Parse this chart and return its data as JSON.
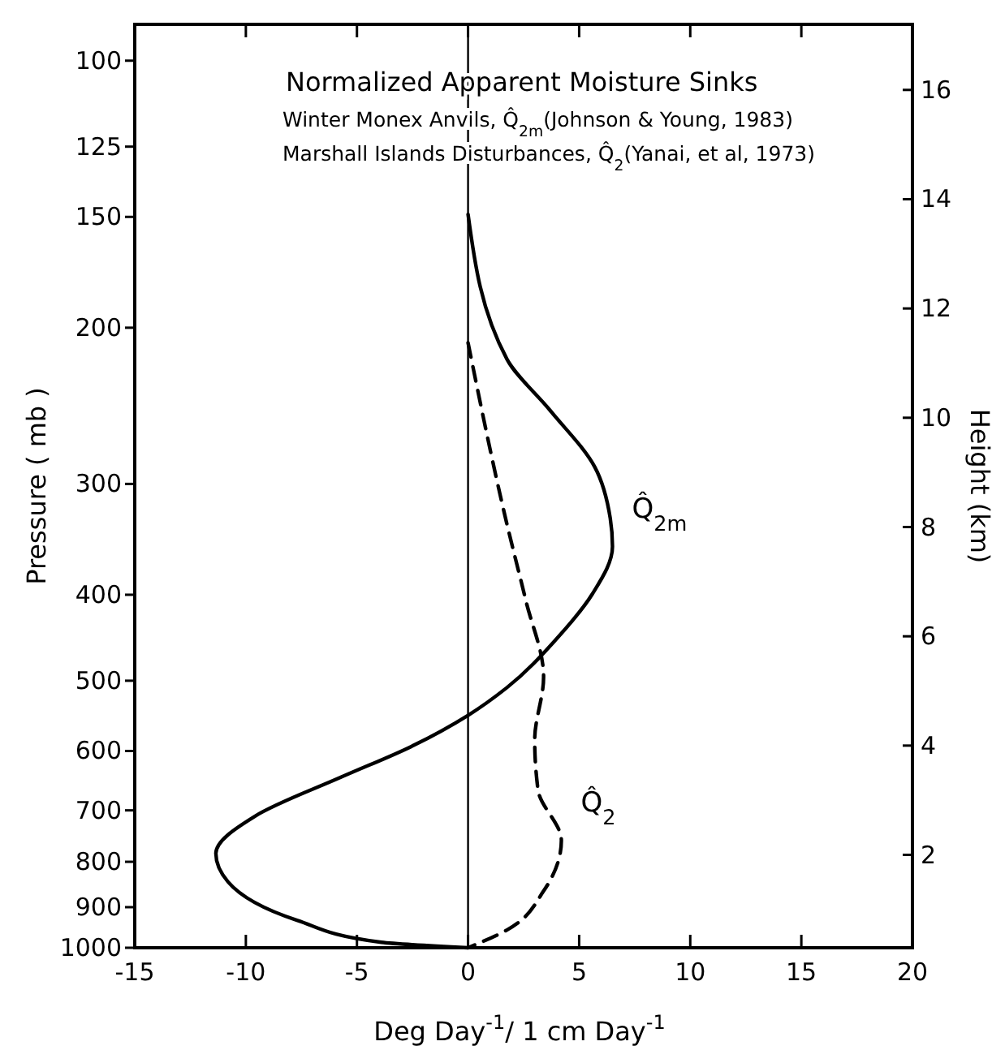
{
  "chart_data": {
    "type": "line",
    "title": "Normalized Apparent Moisture Sinks",
    "annotations": [
      "Winter Monex Anvils, Q̂$_{2m}$(Johnson & Young, 1983)",
      "Marshall Islands Disturbances,  Q̂$_{2}$(Yanai, et al, 1973)"
    ],
    "xlabel": "Deg Day$^{-1}$/ 1 cm Day$^{-1}$",
    "ylabel": "Pressure ( mb )",
    "y2label": "Height (km)",
    "series": [
      {
        "name": "Q̂$_{2m}$",
        "color": "#000000",
        "line_style": "solid",
        "x": [
          0,
          1.75,
          3.7,
          5.7,
          6.4,
          6.5,
          5.6,
          4.0,
          1.75,
          0,
          -2.55,
          -5.7,
          -9.6,
          -11.35,
          -10.8,
          -7.7,
          -3.9,
          0
        ],
        "values": [
          149,
          217,
          248,
          287,
          328,
          353,
          399,
          448,
          509,
          547,
          593,
          642,
          711,
          783,
          843,
          931,
          986,
          1000
        ]
      },
      {
        "name": "Q̂$_{2}$",
        "color": "#000000",
        "line_style": "dashed",
        "x": [
          0,
          1.75,
          2.6,
          3.4,
          3.0,
          3.15,
          4.2,
          3.4,
          1.75,
          0
        ],
        "values": [
          208,
          333,
          406,
          495,
          583,
          664,
          757,
          863,
          955,
          1000
        ]
      }
    ],
    "xlim": [
      -15,
      20
    ],
    "xticks": [
      -15,
      -10,
      -5,
      0,
      5,
      10,
      15,
      20
    ],
    "ylim": [
      1000,
      91
    ],
    "yticks": [
      100,
      125,
      150,
      200,
      300,
      400,
      500,
      600,
      700,
      800,
      900,
      1000
    ],
    "log": "y",
    "y2lim": [
      0.3,
      17.2
    ],
    "y2ticks": [
      2,
      4,
      6,
      8,
      10,
      12,
      14,
      16
    ],
    "ref_lines": [
      {
        "axis": "x",
        "value": 0,
        "color": "#000000"
      }
    ],
    "grid": false,
    "marker": "none"
  }
}
